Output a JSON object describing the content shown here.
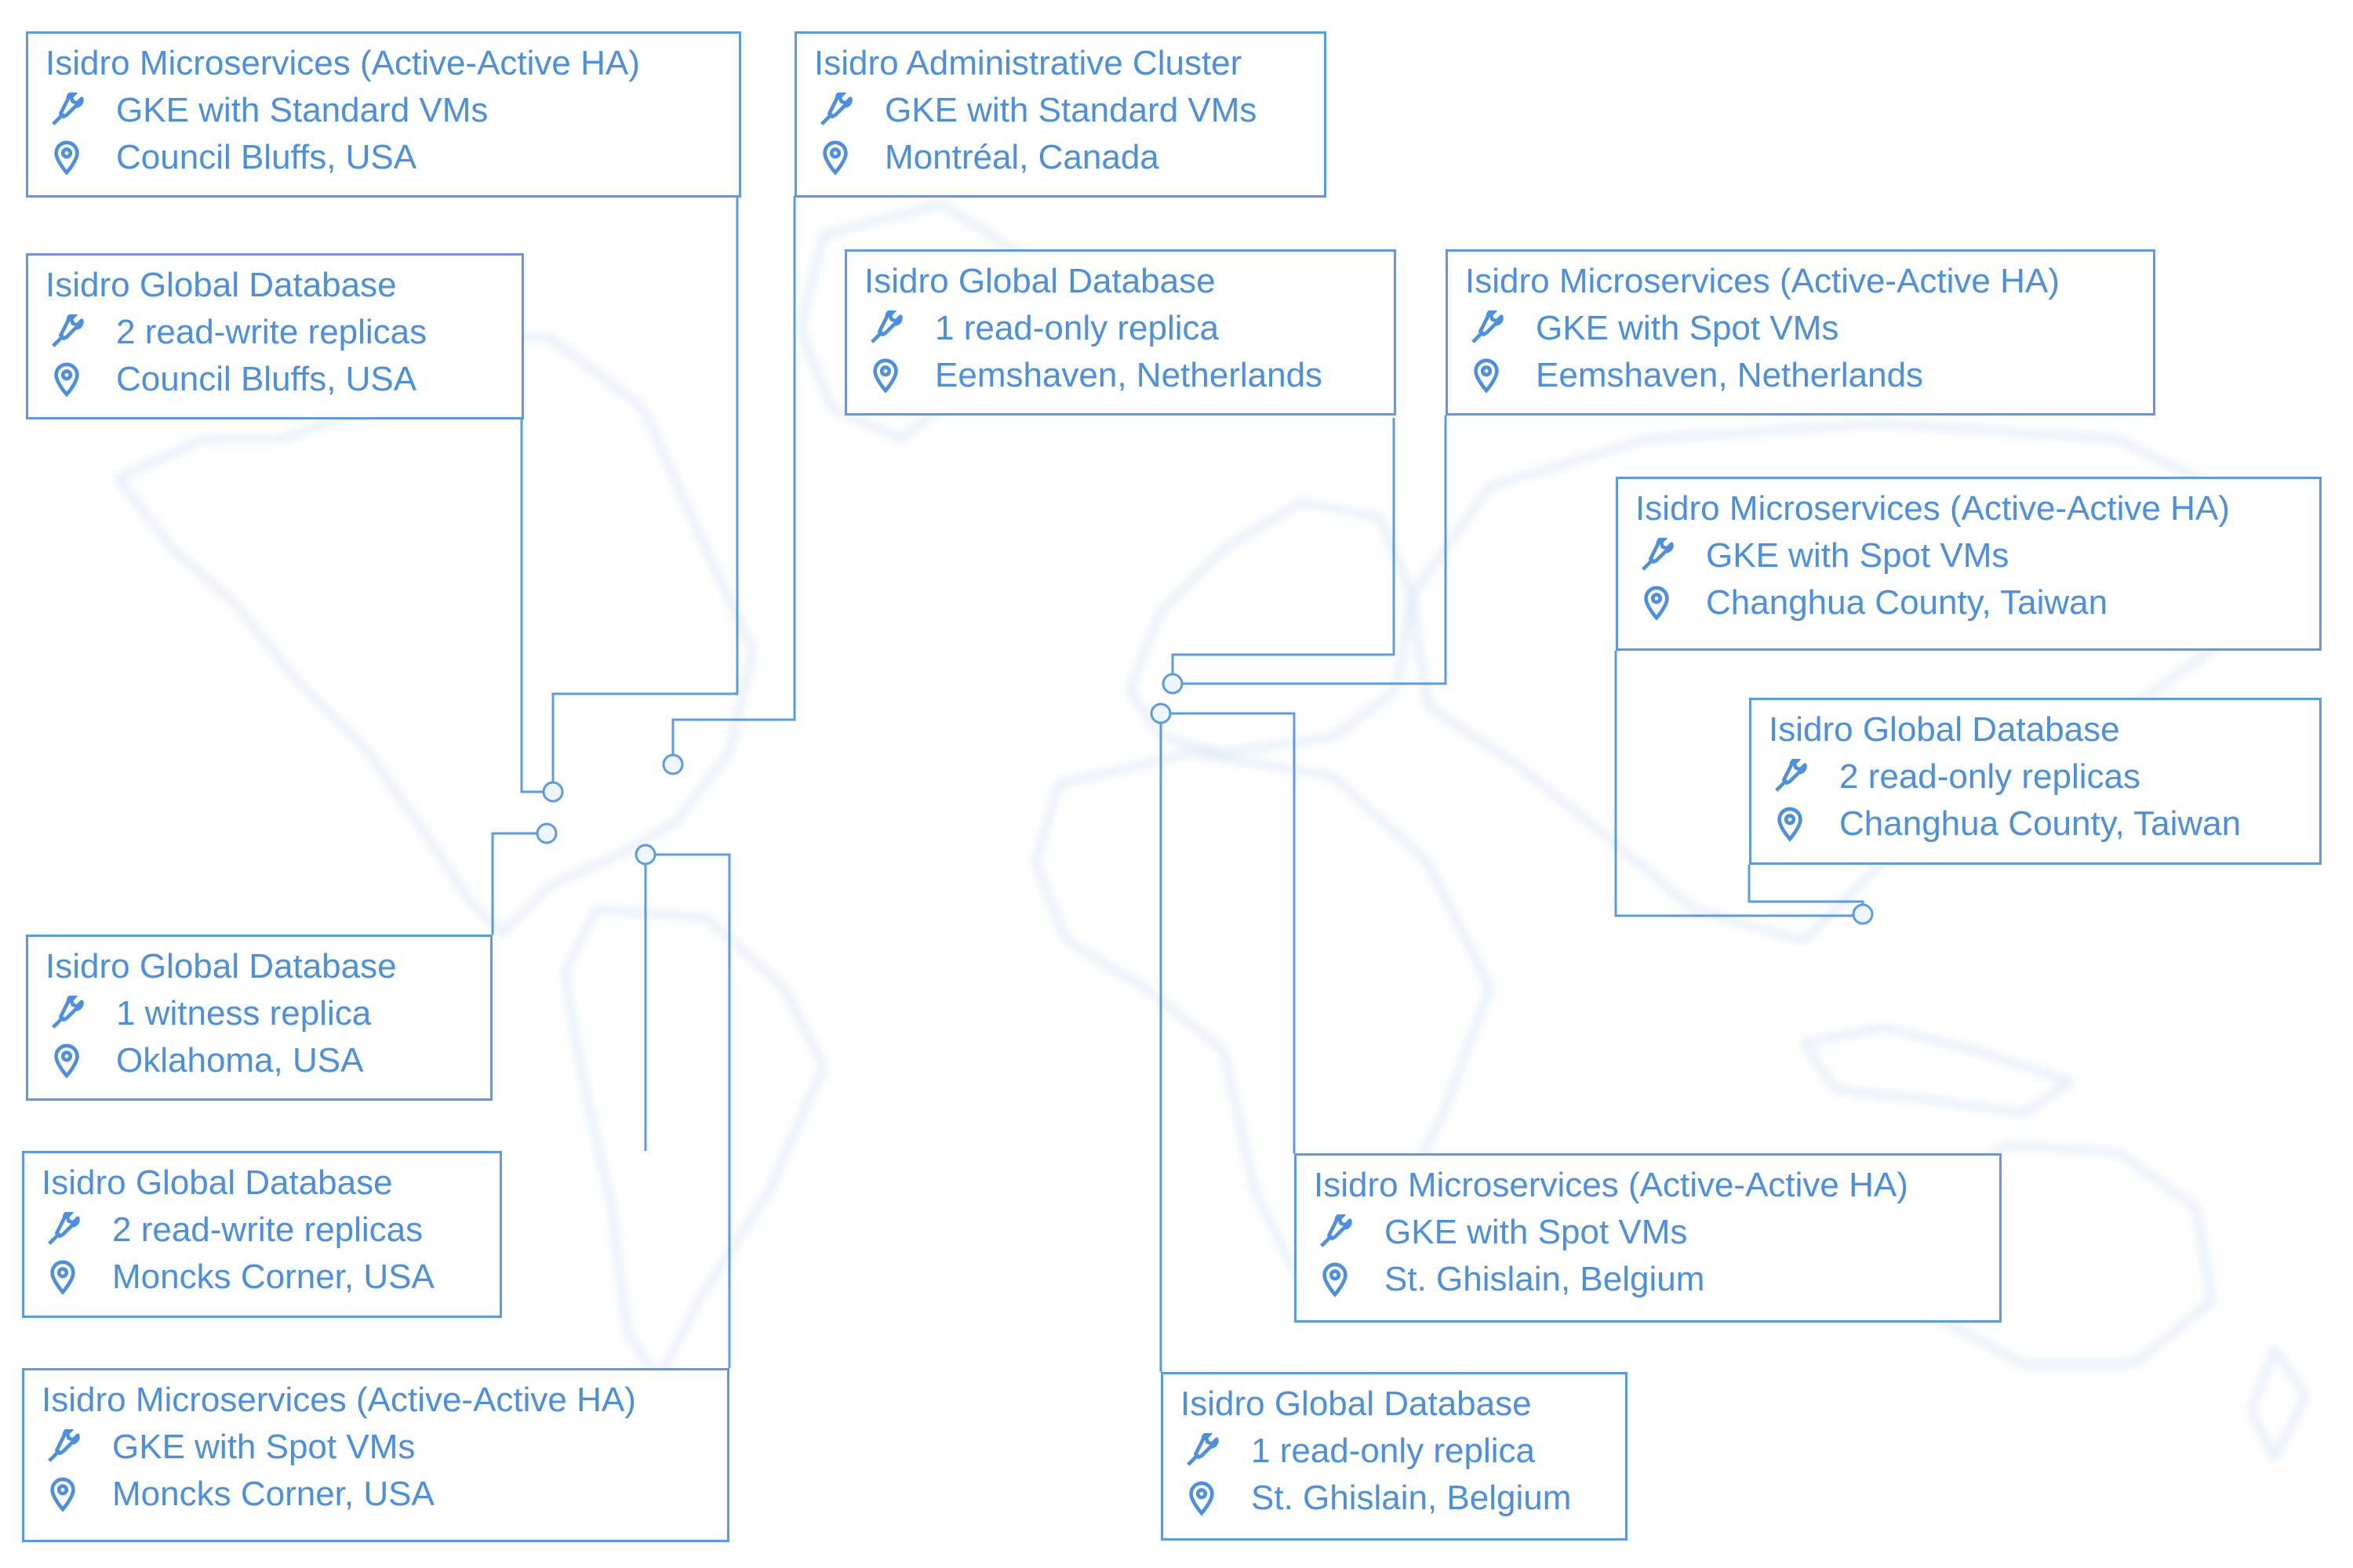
{
  "colors": {
    "accent": "#5b9be6",
    "text": "#4a8fe2",
    "map": "#d7e6f7"
  },
  "icons": {
    "spec": "wrench-icon",
    "location": "map-pin-icon"
  },
  "cards": [
    {
      "title": "Isidro Microservices (Active-Active HA)",
      "spec": "GKE with Standard VMs",
      "location": "Council Bluffs, USA"
    },
    {
      "title": "Isidro Global Database",
      "spec": "2 read-write replicas",
      "location": "Council Bluffs, USA"
    },
    {
      "title": "Isidro Administrative Cluster",
      "spec": "GKE with Standard VMs",
      "location": "Montréal, Canada"
    },
    {
      "title": "Isidro Global Database",
      "spec": "1 read-only replica",
      "location": "Eemshaven, Netherlands"
    },
    {
      "title": "Isidro Microservices (Active-Active HA)",
      "spec": "GKE with Spot VMs",
      "location": "Eemshaven, Netherlands"
    },
    {
      "title": "Isidro Microservices (Active-Active HA)",
      "spec": "GKE with Spot VMs",
      "location": "Changhua County, Taiwan"
    },
    {
      "title": "Isidro Global Database",
      "spec": "2 read-only replicas",
      "location": "Changhua County, Taiwan"
    },
    {
      "title": "Isidro Global Database",
      "spec": "1 witness replica",
      "location": "Oklahoma, USA"
    },
    {
      "title": "Isidro Global Database",
      "spec": "2 read-write replicas",
      "location": "Moncks Corner, USA"
    },
    {
      "title": "Isidro Microservices (Active-Active HA)",
      "spec": "GKE with Spot VMs",
      "location": "Moncks Corner, USA"
    },
    {
      "title": "Isidro Microservices (Active-Active HA)",
      "spec": "GKE with Spot VMs",
      "location": "St. Ghislain, Belgium"
    },
    {
      "title": "Isidro Global Database",
      "spec": "1 read-only replica",
      "location": "St. Ghislain, Belgium"
    }
  ]
}
